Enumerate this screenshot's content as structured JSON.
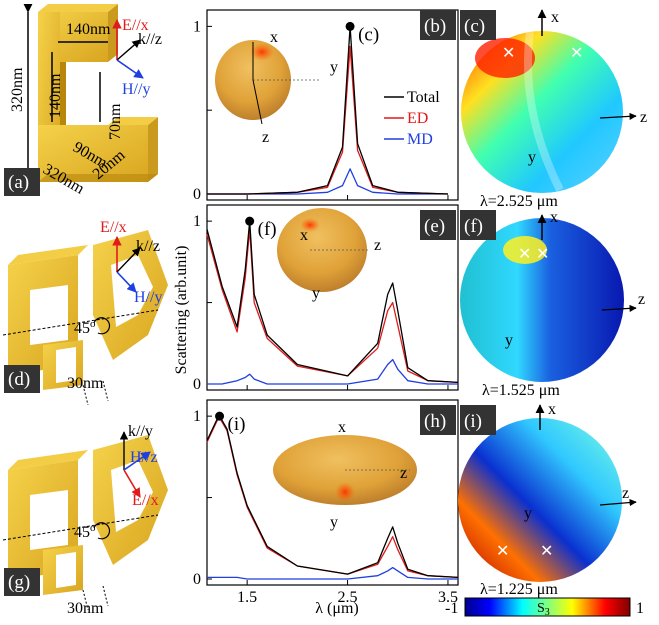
{
  "colors": {
    "total": "#000000",
    "ed": "#e01b1b",
    "md": "#1f3fe0",
    "gold": "#e6b422",
    "gold_dark": "#b8860b",
    "gold_light": "#f3cd45"
  },
  "panel_a": {
    "label": "(a)",
    "dims": {
      "height": "320nm",
      "width": "320nm",
      "top_arm": "140nm",
      "gap": "140nm",
      "arm_w": "90nm",
      "slit": "70nm",
      "depth": "20nm"
    },
    "E": "E//x",
    "k": "k//z",
    "H": "H//y"
  },
  "panel_d": {
    "label": "(d)",
    "E": "E//x",
    "k": "k//z",
    "H": "H//y",
    "angle": "45",
    "angle_sup": "o",
    "size": "30nm"
  },
  "panel_g": {
    "label": "(g)",
    "E": "E//x",
    "k": "k//y",
    "H": "H//z",
    "angle": "45",
    "angle_sup": "o",
    "size": "30nm"
  },
  "spectra": {
    "ylabel": "Scattering (arb.unit)",
    "xlabel": "λ (μm)",
    "legend": {
      "total": "Total",
      "ed": "ED",
      "md": "MD"
    },
    "x_ticks": [
      "1.5",
      "2.5",
      "3.5"
    ],
    "panels": [
      {
        "label": "(b)",
        "marker_label": "(c)",
        "y_ticks": [
          "1",
          "0"
        ],
        "far_axes": [
          "x",
          "y",
          "z"
        ]
      },
      {
        "label": "(e)",
        "marker_label": "(f)",
        "y_ticks": [
          "1",
          "0"
        ],
        "far_axes": [
          "x",
          "z",
          "y"
        ]
      },
      {
        "label": "(h)",
        "marker_label": "(i)",
        "y_ticks": [
          "1",
          "0"
        ],
        "far_axes": [
          "x",
          "z",
          "y"
        ]
      }
    ]
  },
  "chart_data": [
    {
      "type": "line",
      "xlim": [
        1.1,
        3.6
      ],
      "ylim": [
        0,
        1.05
      ],
      "xlabel": "λ (μm)",
      "ylabel": "Scattering (arb.unit)",
      "series": [
        {
          "name": "Total",
          "x": [
            1.1,
            1.5,
            2.0,
            2.3,
            2.45,
            2.525,
            2.6,
            2.75,
            3.0,
            3.5
          ],
          "y": [
            0.0,
            0.0,
            0.01,
            0.05,
            0.28,
            1.0,
            0.3,
            0.05,
            0.01,
            0.0
          ]
        },
        {
          "name": "ED",
          "x": [
            1.1,
            1.5,
            2.0,
            2.3,
            2.45,
            2.525,
            2.6,
            2.75,
            3.0,
            3.5
          ],
          "y": [
            0.0,
            0.0,
            0.01,
            0.04,
            0.25,
            0.88,
            0.26,
            0.04,
            0.01,
            0.0
          ]
        },
        {
          "name": "MD",
          "x": [
            1.1,
            1.5,
            2.0,
            2.3,
            2.45,
            2.525,
            2.6,
            2.75,
            3.0,
            3.5
          ],
          "y": [
            0.0,
            0.0,
            0.0,
            0.01,
            0.05,
            0.15,
            0.05,
            0.01,
            0.0,
            0.0
          ]
        }
      ]
    },
    {
      "type": "line",
      "xlim": [
        1.1,
        3.6
      ],
      "ylim": [
        0,
        1.05
      ],
      "series": [
        {
          "name": "Total",
          "x": [
            1.1,
            1.25,
            1.4,
            1.48,
            1.525,
            1.57,
            1.7,
            2.0,
            2.5,
            2.8,
            2.9,
            2.95,
            3.0,
            3.1,
            3.3,
            3.6
          ],
          "y": [
            0.95,
            0.6,
            0.35,
            0.7,
            1.0,
            0.55,
            0.3,
            0.12,
            0.05,
            0.25,
            0.55,
            0.62,
            0.45,
            0.1,
            0.02,
            0.01
          ]
        },
        {
          "name": "ED",
          "x": [
            1.1,
            1.25,
            1.4,
            1.48,
            1.525,
            1.57,
            1.7,
            2.0,
            2.5,
            2.8,
            2.9,
            2.95,
            3.0,
            3.1,
            3.3,
            3.6
          ],
          "y": [
            0.92,
            0.58,
            0.32,
            0.65,
            0.95,
            0.5,
            0.28,
            0.11,
            0.05,
            0.22,
            0.45,
            0.5,
            0.36,
            0.08,
            0.02,
            0.01
          ]
        },
        {
          "name": "MD",
          "x": [
            1.1,
            1.25,
            1.4,
            1.48,
            1.525,
            1.57,
            1.7,
            2.0,
            2.5,
            2.8,
            2.9,
            2.95,
            3.0,
            3.1,
            3.3,
            3.6
          ],
          "y": [
            0.0,
            0.0,
            0.02,
            0.04,
            0.06,
            0.03,
            0.0,
            0.0,
            0.0,
            0.03,
            0.12,
            0.15,
            0.09,
            0.02,
            0.0,
            0.0
          ]
        }
      ]
    },
    {
      "type": "line",
      "xlim": [
        1.1,
        3.6
      ],
      "ylim": [
        0,
        1.05
      ],
      "series": [
        {
          "name": "Total",
          "x": [
            1.1,
            1.2,
            1.225,
            1.3,
            1.4,
            1.5,
            1.7,
            2.0,
            2.5,
            2.8,
            2.9,
            2.95,
            3.0,
            3.1,
            3.3,
            3.6
          ],
          "y": [
            0.85,
            0.98,
            1.0,
            0.92,
            0.65,
            0.45,
            0.2,
            0.08,
            0.03,
            0.1,
            0.25,
            0.32,
            0.22,
            0.06,
            0.02,
            0.01
          ]
        },
        {
          "name": "ED",
          "x": [
            1.1,
            1.2,
            1.225,
            1.3,
            1.4,
            1.5,
            1.7,
            2.0,
            2.5,
            2.8,
            2.9,
            2.95,
            3.0,
            3.1,
            3.3,
            3.6
          ],
          "y": [
            0.84,
            0.97,
            0.99,
            0.91,
            0.64,
            0.44,
            0.19,
            0.08,
            0.03,
            0.09,
            0.2,
            0.26,
            0.18,
            0.05,
            0.02,
            0.01
          ]
        },
        {
          "name": "MD",
          "x": [
            1.1,
            1.2,
            1.225,
            1.3,
            1.4,
            1.5,
            1.7,
            2.0,
            2.5,
            2.8,
            2.9,
            2.95,
            3.0,
            3.1,
            3.3,
            3.6
          ],
          "y": [
            0.01,
            0.01,
            0.01,
            0.01,
            0.01,
            0.0,
            0.0,
            0.0,
            0.0,
            0.02,
            0.05,
            0.07,
            0.05,
            0.01,
            0.0,
            0.0
          ]
        }
      ]
    }
  ],
  "polar": [
    {
      "label": "(c)",
      "lambda": "λ=2.525 μm",
      "axes": [
        "x",
        "y",
        "z"
      ]
    },
    {
      "label": "(f)",
      "lambda": "λ=1.525 μm",
      "axes": [
        "x",
        "y",
        "z"
      ]
    },
    {
      "label": "(i)",
      "lambda": "λ=1.225 μm",
      "axes": [
        "x",
        "y",
        "z"
      ]
    }
  ],
  "colorbar": {
    "min": "-1",
    "max": "1",
    "label": "S",
    "label_sub": "3"
  }
}
